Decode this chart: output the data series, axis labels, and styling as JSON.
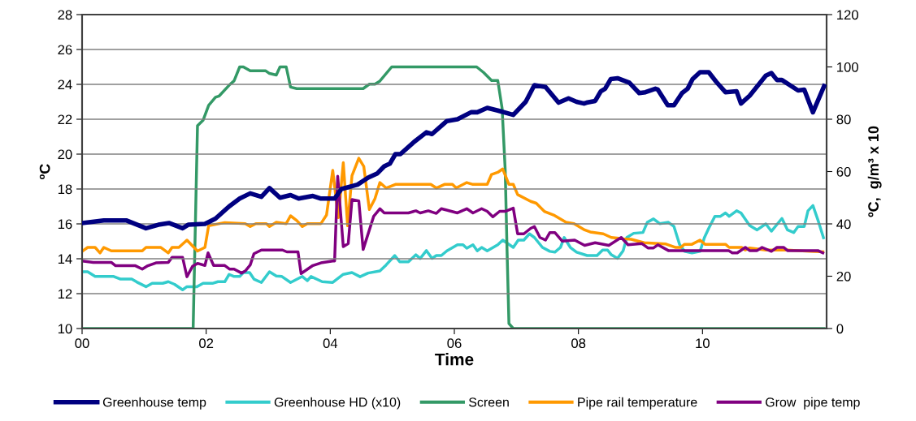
{
  "chart_data": {
    "type": "line",
    "xlabel": "Time",
    "ylabel": "ºC",
    "y2label": "ºC,  g/m³ x 10",
    "xlim": [
      0,
      12
    ],
    "xticks": [
      {
        "value": 0,
        "label": "00"
      },
      {
        "value": 2,
        "label": "02"
      },
      {
        "value": 4,
        "label": "04"
      },
      {
        "value": 6,
        "label": "06"
      },
      {
        "value": 8,
        "label": "08"
      },
      {
        "value": 10,
        "label": "10"
      }
    ],
    "ylim": [
      10,
      28
    ],
    "yticks": [
      10,
      12,
      14,
      16,
      18,
      20,
      22,
      24,
      26,
      28
    ],
    "y2lim": [
      0,
      120
    ],
    "y2ticks": [
      0,
      20,
      40,
      60,
      80,
      100,
      120
    ],
    "grid": "y",
    "legend": "bottom",
    "marker": "none",
    "line_style": "solid",
    "series": [
      {
        "name": "Greenhouse temp",
        "color": "#000080",
        "x": [
          0,
          0.35,
          0.71,
          1.03,
          1.23,
          1.4,
          1.62,
          1.71,
          1.98,
          2.15,
          2.37,
          2.54,
          2.71,
          2.89,
          3.02,
          3.19,
          3.36,
          3.49,
          3.72,
          3.85,
          4.07,
          4.18,
          4.44,
          4.61,
          4.76,
          4.87,
          4.96,
          5.05,
          5.13,
          5.35,
          5.55,
          5.64,
          5.88,
          6.05,
          6.27,
          6.37,
          6.53,
          6.7,
          6.95,
          7.15,
          7.29,
          7.47,
          7.68,
          7.84,
          7.97,
          8.09,
          8.13,
          8.27,
          8.36,
          8.43,
          8.52,
          8.63,
          8.82,
          8.98,
          9.08,
          9.24,
          9.28,
          9.44,
          9.54,
          9.67,
          9.76,
          9.84,
          9.96,
          10.1,
          10.22,
          10.37,
          10.55,
          10.62,
          10.76,
          11.02,
          11.11,
          11.2,
          11.28,
          11.54,
          11.64,
          11.78,
          11.96
        ],
        "values": [
          16.05,
          16.2,
          16.2,
          15.75,
          15.95,
          16.05,
          15.75,
          15.95,
          16.0,
          16.3,
          17.0,
          17.45,
          17.75,
          17.55,
          18.05,
          17.5,
          17.65,
          17.45,
          17.6,
          17.45,
          17.45,
          18.0,
          18.25,
          18.65,
          18.9,
          19.3,
          19.45,
          20.0,
          20.0,
          20.7,
          21.25,
          21.15,
          21.9,
          22.0,
          22.4,
          22.4,
          22.65,
          22.5,
          22.25,
          23.0,
          23.95,
          23.85,
          22.95,
          23.2,
          23.0,
          22.9,
          22.95,
          23.05,
          23.6,
          23.75,
          24.3,
          24.35,
          24.1,
          23.5,
          23.55,
          23.75,
          23.7,
          22.8,
          22.8,
          23.5,
          23.75,
          24.3,
          24.7,
          24.7,
          24.15,
          23.55,
          23.6,
          22.9,
          23.35,
          24.5,
          24.65,
          24.25,
          24.25,
          23.65,
          23.7,
          22.4,
          23.9
        ]
      },
      {
        "name": "Greenhouse HD (x10)",
        "color": "#33cccc",
        "axis": "y2",
        "x": [
          0,
          0.09,
          0.21,
          0.51,
          0.62,
          0.8,
          0.88,
          1.03,
          1.13,
          1.3,
          1.39,
          1.49,
          1.62,
          1.69,
          1.85,
          1.95,
          2.11,
          2.19,
          2.3,
          2.37,
          2.45,
          2.54,
          2.6,
          2.7,
          2.77,
          2.89,
          3.02,
          3.13,
          3.22,
          3.36,
          3.55,
          3.63,
          3.69,
          3.87,
          4.04,
          4.21,
          4.35,
          4.48,
          4.61,
          4.8,
          4.9,
          5.04,
          5.12,
          5.26,
          5.38,
          5.45,
          5.55,
          5.64,
          5.71,
          5.79,
          5.88,
          6.05,
          6.14,
          6.2,
          6.3,
          6.37,
          6.44,
          6.53,
          6.7,
          6.78,
          6.95,
          7.03,
          7.12,
          7.21,
          7.29,
          7.42,
          7.54,
          7.62,
          7.71,
          7.77,
          7.87,
          7.97,
          8.14,
          8.3,
          8.39,
          8.47,
          8.53,
          8.63,
          8.72,
          8.78,
          8.89,
          9.04,
          9.11,
          9.21,
          9.31,
          9.45,
          9.54,
          9.63,
          9.71,
          9.83,
          9.96,
          10.03,
          10.1,
          10.2,
          10.29,
          10.37,
          10.43,
          10.55,
          10.62,
          10.76,
          10.88,
          11.02,
          11.11,
          11.28,
          11.37,
          11.47,
          11.54,
          11.64,
          11.7,
          11.78,
          11.87,
          11.95
        ],
        "values": [
          21.7,
          21.7,
          19.9,
          19.9,
          18.9,
          18.9,
          17.8,
          16.0,
          17.3,
          17.3,
          17.9,
          16.9,
          14.8,
          16.0,
          16.0,
          17.3,
          17.3,
          17.9,
          17.9,
          20.7,
          19.9,
          19.9,
          21.4,
          21.4,
          18.9,
          17.6,
          21.7,
          20.1,
          19.9,
          17.6,
          19.9,
          18.3,
          19.9,
          17.9,
          17.6,
          20.7,
          21.4,
          19.8,
          21.2,
          22.0,
          24.3,
          27.9,
          25.5,
          25.5,
          28.2,
          26.8,
          29.8,
          26.8,
          27.9,
          27.9,
          29.7,
          32.0,
          32.0,
          30.7,
          32.0,
          29.7,
          31.0,
          29.7,
          32.0,
          33.8,
          31.0,
          33.8,
          33.8,
          36.2,
          34.8,
          31.0,
          29.5,
          29.2,
          31.0,
          34.8,
          31.0,
          29.2,
          27.9,
          27.9,
          30.0,
          30.0,
          28.2,
          26.8,
          29.7,
          34.8,
          36.4,
          36.7,
          40.6,
          41.9,
          40.1,
          40.6,
          39.0,
          32.2,
          29.5,
          28.9,
          29.5,
          34.7,
          38.3,
          42.9,
          42.9,
          44.2,
          42.9,
          45.0,
          44.2,
          39.4,
          37.7,
          40.0,
          37.2,
          42.1,
          37.7,
          36.7,
          39.0,
          39.0,
          45.0,
          47.0,
          40.8,
          34.7
        ]
      },
      {
        "name": "Screen",
        "color": "#339966",
        "axis": "y2",
        "x": [
          0,
          1.79,
          1.86,
          1.95,
          2.04,
          2.15,
          2.21,
          2.37,
          2.45,
          2.54,
          2.6,
          2.71,
          2.96,
          3.02,
          3.13,
          3.19,
          3.29,
          3.36,
          3.46,
          4.53,
          4.63,
          4.72,
          4.8,
          4.99,
          6.36,
          6.47,
          6.6,
          6.7,
          6.77,
          6.82,
          6.85,
          6.88,
          6.95,
          11.96
        ],
        "values": [
          0,
          0,
          77.5,
          79.6,
          85.3,
          88.4,
          88.9,
          93.0,
          94.7,
          100,
          100,
          98.5,
          98.5,
          97.5,
          96.9,
          100,
          100,
          92.3,
          91.7,
          91.7,
          93.4,
          93.4,
          94.6,
          100,
          100,
          97.9,
          94.8,
          94.8,
          84.2,
          60.5,
          29.5,
          1.9,
          0,
          0
        ]
      },
      {
        "name": "Pipe rail temperature",
        "color": "#ff9900",
        "axis": "y2",
        "x": [
          0,
          0.09,
          0.21,
          0.29,
          0.35,
          0.47,
          0.97,
          1.03,
          1.27,
          1.39,
          1.45,
          1.56,
          1.69,
          1.86,
          1.98,
          2.04,
          2.3,
          2.63,
          2.71,
          2.8,
          2.97,
          3.02,
          3.13,
          3.29,
          3.36,
          3.46,
          3.55,
          3.63,
          3.85,
          3.94,
          4.04,
          4.13,
          4.21,
          4.28,
          4.35,
          4.46,
          4.54,
          4.63,
          4.72,
          4.8,
          4.9,
          5.05,
          5.62,
          5.71,
          5.84,
          5.97,
          6.03,
          6.2,
          6.3,
          6.53,
          6.6,
          6.7,
          6.78,
          6.88,
          6.95,
          7.02,
          7.23,
          7.32,
          7.45,
          7.6,
          7.8,
          7.93,
          8.1,
          8.19,
          8.4,
          8.53,
          8.72,
          8.85,
          9.06,
          9.41,
          9.57,
          9.65,
          9.71,
          9.83,
          9.96,
          10.04,
          10.37,
          10.43,
          10.63,
          10.69,
          10.76,
          11.02,
          11.37,
          11.73,
          11.94
        ],
        "values": [
          29.5,
          31.0,
          31.0,
          28.9,
          31.0,
          29.7,
          29.7,
          31.0,
          31.0,
          28.9,
          31.0,
          31.0,
          33.8,
          29.6,
          31.0,
          39.3,
          40.5,
          40.1,
          39.0,
          40.1,
          40.1,
          39.0,
          40.6,
          40.1,
          43.1,
          41.3,
          39.0,
          40.1,
          40.1,
          43.4,
          60.5,
          42.4,
          63.4,
          39.3,
          58.4,
          65.1,
          62.0,
          45.5,
          49.6,
          55.8,
          53.7,
          55.1,
          55.1,
          53.7,
          55.1,
          55.1,
          53.7,
          55.8,
          55.1,
          55.1,
          58.9,
          59.7,
          61.0,
          55.1,
          55.1,
          51.2,
          48.6,
          47.9,
          44.8,
          43.4,
          40.6,
          40.1,
          37.7,
          36.9,
          36.2,
          34.8,
          34.3,
          34.1,
          32.8,
          32.3,
          31.0,
          31.0,
          32.2,
          32.2,
          33.8,
          32.2,
          32.2,
          31.0,
          31.0,
          30.0,
          30.8,
          30.0,
          30.0,
          29.5,
          29.3
        ]
      },
      {
        "name": "Grow  pipe temp",
        "color": "#800080",
        "axis": "y2",
        "x": [
          0,
          0.18,
          0.47,
          0.54,
          0.86,
          0.97,
          1.06,
          1.19,
          1.39,
          1.45,
          1.62,
          1.69,
          1.78,
          1.86,
          1.98,
          2.03,
          2.12,
          2.3,
          2.38,
          2.45,
          2.57,
          2.63,
          2.71,
          2.77,
          2.89,
          3.23,
          3.3,
          3.48,
          3.53,
          3.72,
          3.85,
          4.04,
          4.07,
          4.12,
          4.21,
          4.29,
          4.35,
          4.46,
          4.53,
          4.7,
          4.8,
          4.87,
          5.26,
          5.38,
          5.45,
          5.58,
          5.71,
          5.79,
          6.05,
          6.2,
          6.3,
          6.44,
          6.53,
          6.62,
          6.73,
          6.82,
          6.95,
          7.02,
          7.12,
          7.23,
          7.29,
          7.38,
          7.47,
          7.54,
          7.62,
          7.74,
          7.94,
          8.1,
          8.27,
          8.49,
          8.69,
          8.8,
          9.02,
          9.12,
          9.21,
          9.28,
          9.45,
          10.42,
          10.48,
          10.56,
          10.69,
          10.76,
          10.88,
          10.96,
          11.11,
          11.2,
          11.31,
          11.37,
          11.86,
          11.94
        ],
        "values": [
          25.8,
          25.3,
          25.3,
          24.0,
          24.0,
          22.7,
          24.0,
          25.1,
          25.3,
          27.2,
          27.2,
          19.8,
          23.8,
          24.9,
          24.1,
          28.9,
          24.1,
          24.1,
          22.7,
          22.7,
          21.2,
          22.0,
          24.3,
          28.6,
          30.0,
          30.0,
          29.3,
          29.3,
          21.0,
          24.1,
          25.1,
          25.8,
          25.8,
          58.2,
          31.3,
          32.5,
          49.3,
          48.8,
          30.2,
          42.9,
          45.8,
          44.2,
          44.2,
          45.0,
          44.2,
          45.0,
          44.0,
          45.8,
          44.2,
          45.8,
          44.2,
          45.8,
          44.8,
          42.7,
          44.8,
          44.8,
          46.0,
          36.2,
          36.2,
          38.3,
          39.0,
          34.8,
          33.8,
          36.7,
          36.7,
          33.4,
          33.8,
          31.8,
          32.8,
          31.8,
          34.8,
          32.0,
          32.5,
          30.8,
          30.8,
          32.0,
          29.8,
          29.8,
          28.9,
          28.9,
          31.0,
          29.8,
          29.8,
          31.0,
          29.5,
          31.0,
          31.0,
          29.8,
          29.8,
          28.9
        ]
      }
    ]
  }
}
